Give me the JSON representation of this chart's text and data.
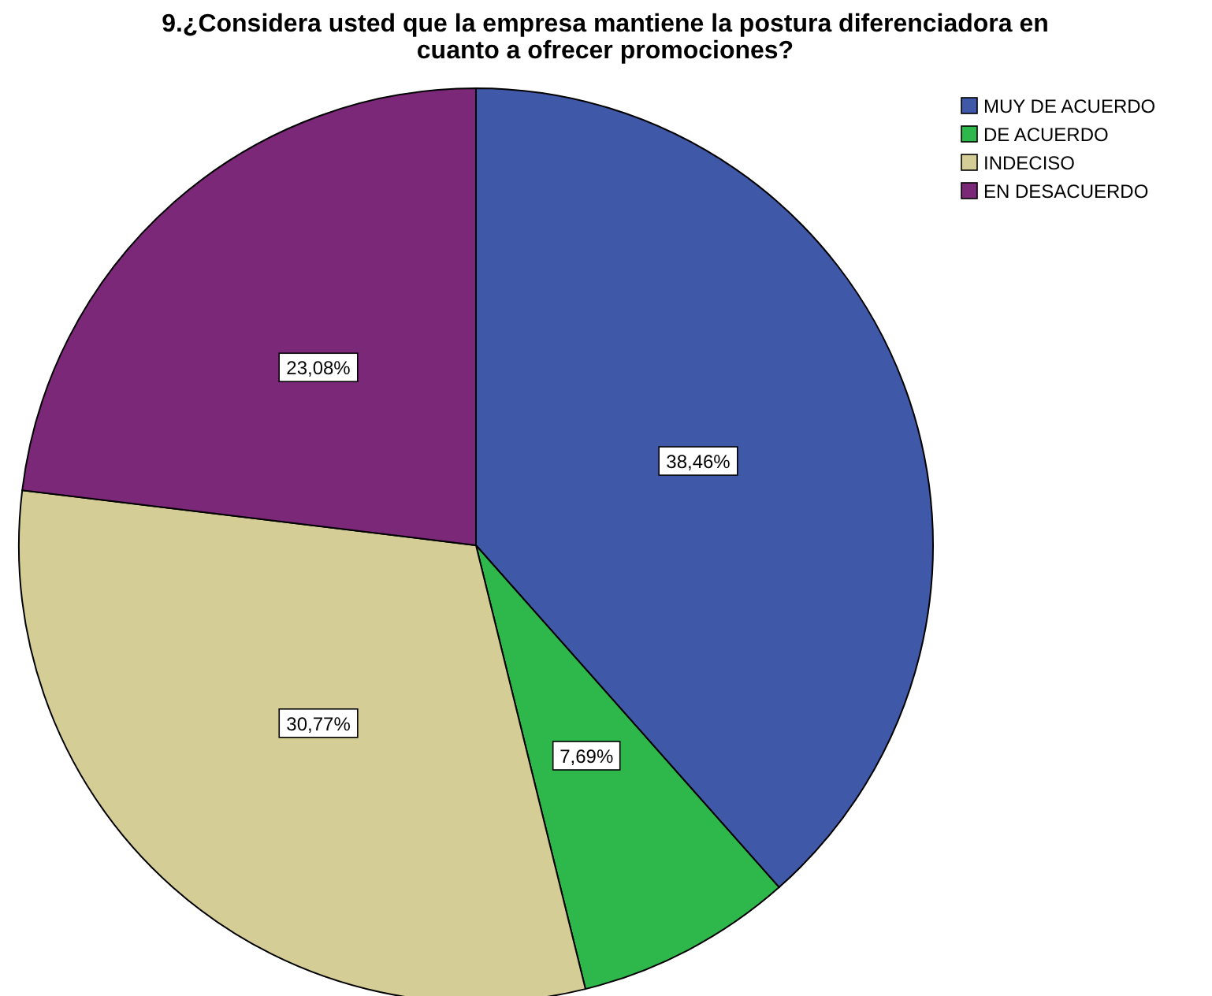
{
  "chart_data": {
    "type": "pie",
    "title": "9.¿Considera usted que la empresa mantiene la postura diferenciadora en cuanto a ofrecer promociones?",
    "categories": [
      "MUY DE ACUERDO",
      "DE ACUERDO",
      "INDECISO",
      "EN DESACUERDO"
    ],
    "values": [
      38.46,
      7.69,
      30.77,
      23.08
    ],
    "colors": [
      "#3f58a8",
      "#2eb84b",
      "#d5cd96",
      "#7b2878"
    ],
    "value_labels": [
      "38,46%",
      "7,69%",
      "30,77%",
      "23,08%"
    ],
    "legend": "top right"
  }
}
